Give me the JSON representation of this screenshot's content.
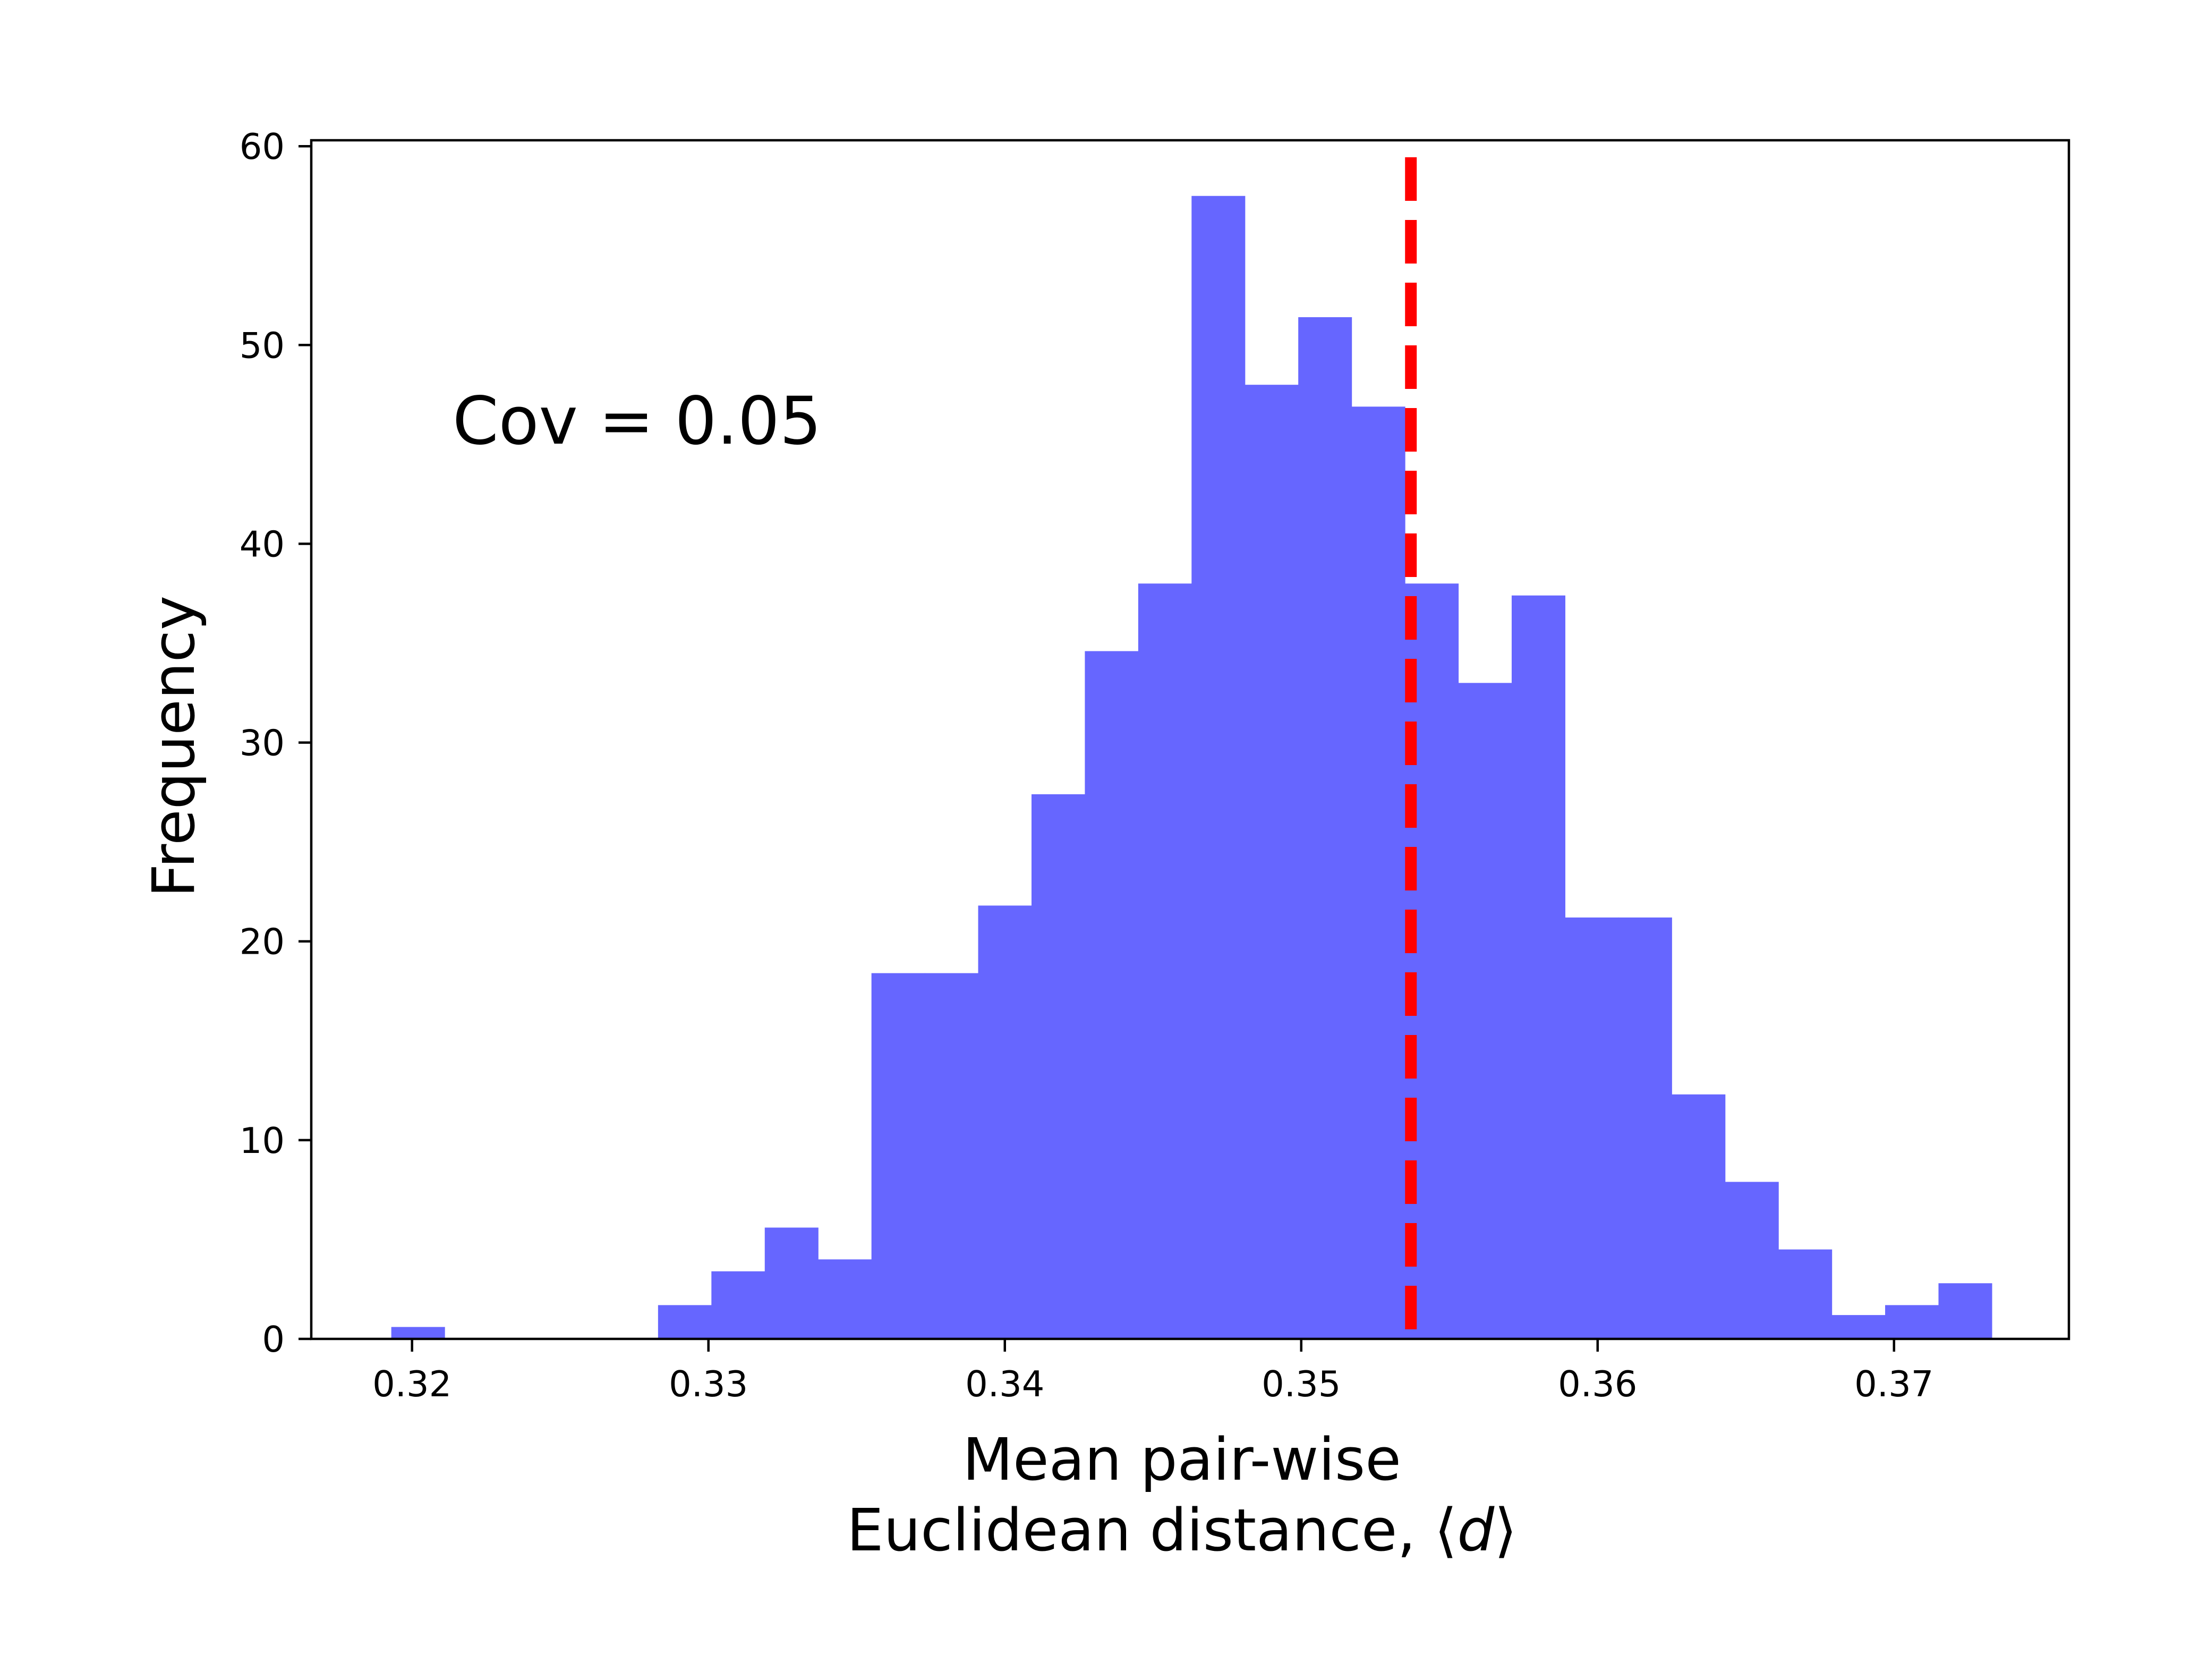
{
  "chart_data": {
    "type": "bar",
    "subtype": "histogram",
    "bar_color": "#6666ff",
    "bin_edges": [
      0.3193,
      0.3211,
      0.3229,
      0.3247,
      0.3265,
      0.3283,
      0.3301,
      0.3319,
      0.3337,
      0.3355,
      0.3373,
      0.3391,
      0.3409,
      0.3427,
      0.3445,
      0.3463,
      0.3481,
      0.3499,
      0.3517,
      0.3535,
      0.3553,
      0.3571,
      0.3589,
      0.3607,
      0.3625,
      0.3643,
      0.3661,
      0.3679,
      0.3697,
      0.3715,
      0.3733
    ],
    "values": [
      0.6,
      0,
      0,
      0,
      0,
      1.7,
      3.4,
      5.6,
      4.0,
      18.4,
      18.4,
      21.8,
      27.4,
      34.6,
      38.0,
      57.5,
      48.0,
      51.4,
      46.9,
      38.0,
      33.0,
      37.4,
      21.2,
      21.2,
      12.3,
      7.9,
      4.5,
      1.2,
      1.7,
      2.8
    ],
    "vline": {
      "x": 0.3537,
      "color": "#ff0000",
      "style": "dashed"
    },
    "xlim": [
      0.3166,
      0.3759
    ],
    "ylim": [
      0,
      60.3
    ],
    "xticks": [
      0.32,
      0.33,
      0.34,
      0.35,
      0.36,
      0.37
    ],
    "xtick_labels": [
      "0.32",
      "0.33",
      "0.34",
      "0.35",
      "0.36",
      "0.37"
    ],
    "yticks": [
      0,
      10,
      20,
      30,
      40,
      50,
      60
    ],
    "ytick_labels": [
      "0",
      "10",
      "20",
      "30",
      "40",
      "50",
      "60"
    ],
    "xlabel_line1": "Mean pair-wise",
    "xlabel_line2_prefix": "Euclidean distance, ⟨",
    "xlabel_line2_var": "d",
    "xlabel_line2_suffix": "⟩",
    "ylabel": "Frequency",
    "annotation": "Cov = 0.05",
    "grid": false
  }
}
